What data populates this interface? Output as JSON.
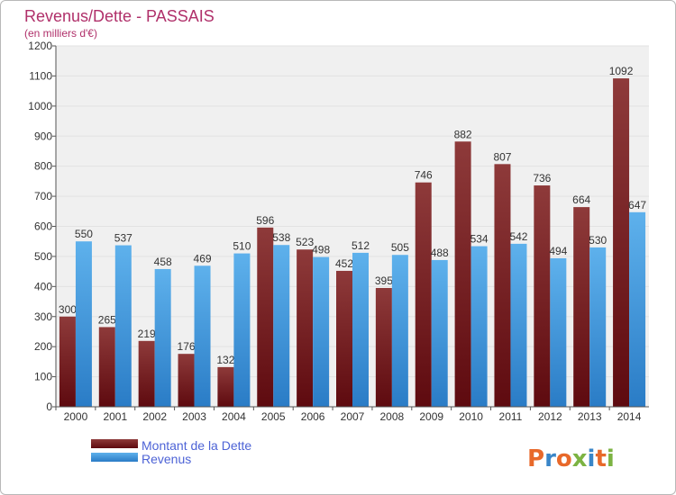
{
  "title": "Revenus/Dette - PASSAIS",
  "subtitle": "(en milliers d'€)",
  "logo_text": "Proxiti",
  "colors": {
    "dette_dark": "#5e0a0f",
    "dette_light": "#8e3a3a",
    "revenus_dark": "#2a7cc6",
    "revenus_light": "#5eb1ec",
    "title": "#b0306a",
    "legend_text": "#4d63d6",
    "grid": "#e2e2e2",
    "plot_bg": "#f0f0f0"
  },
  "chart_data": {
    "type": "bar",
    "title": "Revenus/Dette - PASSAIS",
    "subtitle": "(en milliers d'€)",
    "xlabel": "",
    "ylabel": "",
    "ylim": [
      0,
      1200
    ],
    "yticks": [
      0,
      100,
      200,
      300,
      400,
      500,
      600,
      700,
      800,
      900,
      1000,
      1100,
      1200
    ],
    "grid": true,
    "legend_position": "bottom-left",
    "categories": [
      "2000",
      "2001",
      "2002",
      "2003",
      "2004",
      "2005",
      "2006",
      "2007",
      "2008",
      "2009",
      "2010",
      "2011",
      "2012",
      "2013",
      "2014"
    ],
    "series": [
      {
        "name": "Montant de la Dette",
        "values": [
          300,
          265,
          219,
          176,
          132,
          596,
          523,
          452,
          395,
          746,
          882,
          807,
          736,
          664,
          1092
        ]
      },
      {
        "name": "Revenus",
        "values": [
          550,
          537,
          458,
          469,
          510,
          538,
          498,
          512,
          505,
          488,
          534,
          542,
          494,
          530,
          647
        ]
      }
    ]
  }
}
